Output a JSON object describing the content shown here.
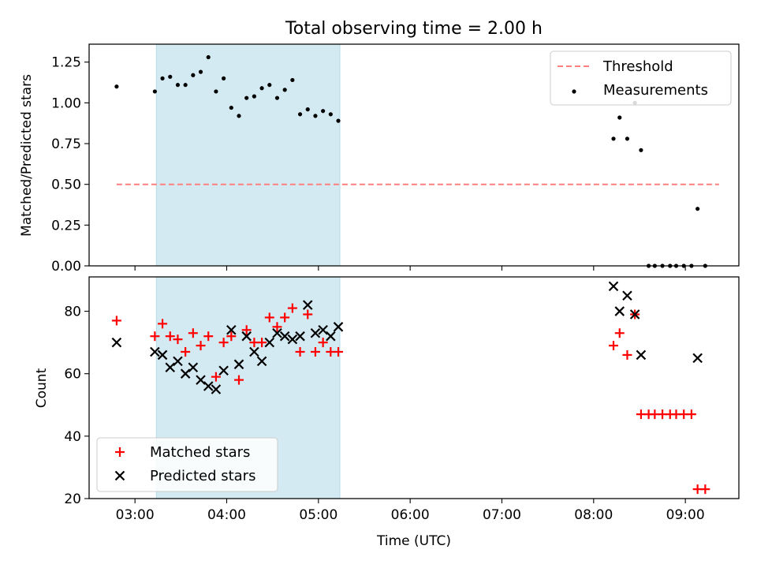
{
  "chart_data": [
    {
      "type": "scatter",
      "title": "Total observing time = 2.00 h",
      "xlabel": "",
      "ylabel": "Matched/Predicted stars",
      "xlim": [
        "02:30",
        "09:35"
      ],
      "ylim": [
        0,
        1.36
      ],
      "yticks": [
        "0.00",
        "0.25",
        "0.50",
        "0.75",
        "1.00",
        "1.25"
      ],
      "shaded_interval": [
        "03:14",
        "05:14"
      ],
      "shaded_color": "#add8e6",
      "threshold": {
        "name": "Threshold",
        "y": 0.5,
        "x": [
          "02:48",
          "09:22"
        ],
        "color": "#ff7f7f",
        "style": "dashed"
      },
      "series": [
        {
          "name": "Measurements",
          "marker": "dot",
          "color": "#000000",
          "points": [
            [
              "02:48",
              1.1
            ],
            [
              "03:13",
              1.07
            ],
            [
              "03:18",
              1.15
            ],
            [
              "03:23",
              1.16
            ],
            [
              "03:28",
              1.11
            ],
            [
              "03:33",
              1.11
            ],
            [
              "03:38",
              1.17
            ],
            [
              "03:43",
              1.19
            ],
            [
              "03:48",
              1.28
            ],
            [
              "03:53",
              1.07
            ],
            [
              "03:58",
              1.15
            ],
            [
              "04:03",
              0.97
            ],
            [
              "04:08",
              0.92
            ],
            [
              "04:13",
              1.03
            ],
            [
              "04:18",
              1.04
            ],
            [
              "04:23",
              1.09
            ],
            [
              "04:28",
              1.11
            ],
            [
              "04:33",
              1.03
            ],
            [
              "04:38",
              1.08
            ],
            [
              "04:43",
              1.14
            ],
            [
              "04:48",
              0.93
            ],
            [
              "04:53",
              0.96
            ],
            [
              "04:58",
              0.92
            ],
            [
              "05:03",
              0.95
            ],
            [
              "05:08",
              0.93
            ],
            [
              "05:13",
              0.89
            ],
            [
              "08:13",
              0.78
            ],
            [
              "08:17",
              0.91
            ],
            [
              "08:22",
              0.78
            ],
            [
              "08:27",
              1.0
            ],
            [
              "08:31",
              0.71
            ],
            [
              "08:36",
              0.0
            ],
            [
              "08:40",
              0.0
            ],
            [
              "08:45",
              0.0
            ],
            [
              "08:50",
              0.0
            ],
            [
              "08:54",
              0.0
            ],
            [
              "08:59",
              0.0
            ],
            [
              "09:04",
              0.0
            ],
            [
              "09:08",
              0.35
            ],
            [
              "09:13",
              0.0
            ]
          ]
        }
      ],
      "legend": "top-right"
    },
    {
      "type": "scatter",
      "title": "",
      "xlabel": "Time (UTC)",
      "ylabel": "Count",
      "xlim": [
        "02:30",
        "09:35"
      ],
      "ylim": [
        20,
        91
      ],
      "yticks": [
        "20",
        "40",
        "60",
        "80"
      ],
      "xticks": [
        "03:00",
        "04:00",
        "05:00",
        "06:00",
        "07:00",
        "08:00",
        "09:00"
      ],
      "shaded_interval": [
        "03:14",
        "05:14"
      ],
      "shaded_color": "#add8e6",
      "series": [
        {
          "name": "Matched stars",
          "marker": "plus",
          "color": "#ff0000",
          "points": [
            [
              "02:48",
              77
            ],
            [
              "03:13",
              72
            ],
            [
              "03:18",
              76
            ],
            [
              "03:23",
              72
            ],
            [
              "03:28",
              71
            ],
            [
              "03:33",
              67
            ],
            [
              "03:38",
              73
            ],
            [
              "03:43",
              69
            ],
            [
              "03:48",
              72
            ],
            [
              "03:53",
              59
            ],
            [
              "03:58",
              70
            ],
            [
              "04:03",
              72
            ],
            [
              "04:08",
              58
            ],
            [
              "04:13",
              74
            ],
            [
              "04:18",
              70
            ],
            [
              "04:23",
              70
            ],
            [
              "04:28",
              78
            ],
            [
              "04:33",
              75
            ],
            [
              "04:38",
              78
            ],
            [
              "04:43",
              81
            ],
            [
              "04:48",
              67
            ],
            [
              "04:53",
              79
            ],
            [
              "04:58",
              67
            ],
            [
              "05:03",
              70
            ],
            [
              "05:08",
              67
            ],
            [
              "05:13",
              67
            ],
            [
              "08:13",
              69
            ],
            [
              "08:17",
              73
            ],
            [
              "08:22",
              66
            ],
            [
              "08:27",
              79
            ],
            [
              "08:31",
              47
            ],
            [
              "08:36",
              47
            ],
            [
              "08:40",
              47
            ],
            [
              "08:45",
              47
            ],
            [
              "08:50",
              47
            ],
            [
              "08:54",
              47
            ],
            [
              "08:59",
              47
            ],
            [
              "09:04",
              47
            ],
            [
              "09:08",
              23
            ],
            [
              "09:13",
              23
            ]
          ]
        },
        {
          "name": "Predicted stars",
          "marker": "x",
          "color": "#000000",
          "points": [
            [
              "02:48",
              70
            ],
            [
              "03:13",
              67
            ],
            [
              "03:18",
              66
            ],
            [
              "03:23",
              62
            ],
            [
              "03:28",
              64
            ],
            [
              "03:33",
              60
            ],
            [
              "03:38",
              62
            ],
            [
              "03:43",
              58
            ],
            [
              "03:48",
              56
            ],
            [
              "03:53",
              55
            ],
            [
              "03:58",
              61
            ],
            [
              "04:03",
              74
            ],
            [
              "04:08",
              63
            ],
            [
              "04:13",
              72
            ],
            [
              "04:18",
              67
            ],
            [
              "04:23",
              64
            ],
            [
              "04:28",
              70
            ],
            [
              "04:33",
              73
            ],
            [
              "04:38",
              72
            ],
            [
              "04:43",
              71
            ],
            [
              "04:48",
              72
            ],
            [
              "04:53",
              82
            ],
            [
              "04:58",
              73
            ],
            [
              "05:03",
              74
            ],
            [
              "05:08",
              72
            ],
            [
              "05:13",
              75
            ],
            [
              "08:13",
              88
            ],
            [
              "08:17",
              80
            ],
            [
              "08:22",
              85
            ],
            [
              "08:27",
              79
            ],
            [
              "08:31",
              66
            ],
            [
              "09:08",
              65
            ]
          ]
        }
      ],
      "legend": "bottom-left"
    }
  ]
}
